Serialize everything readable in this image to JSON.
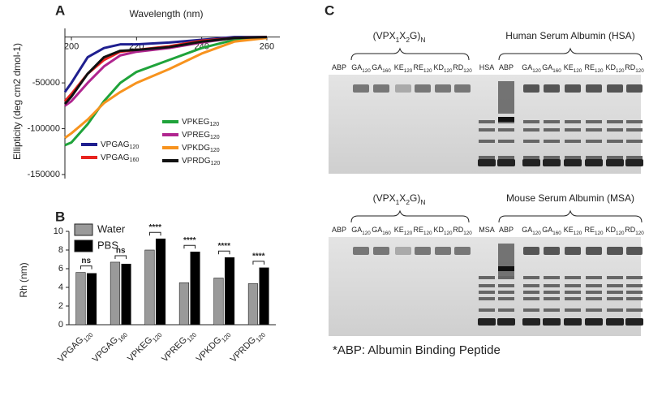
{
  "chart_data": [
    {
      "type": "line",
      "panel": "A",
      "xlabel": "Wavelength (nm)",
      "ylabel": "Ellipticity (deg cm2 dmol-1)",
      "x": [
        198,
        200,
        205,
        210,
        215,
        220,
        230,
        240,
        250,
        260
      ],
      "xlim": [
        198,
        264
      ],
      "xticks": [
        200,
        220,
        240,
        260
      ],
      "ylim": [
        -150000,
        5000
      ],
      "yticks": [
        -150000,
        -100000,
        -50000
      ],
      "series": [
        {
          "name": "VPGAG120",
          "color": "#1f1f8f",
          "values": [
            -60000,
            -50000,
            -22000,
            -12000,
            -8000,
            -8000,
            -6000,
            -3000,
            0,
            0
          ]
        },
        {
          "name": "VPGAG160",
          "color": "#e8231f",
          "values": [
            -70000,
            -62000,
            -40000,
            -25000,
            -16000,
            -14000,
            -10000,
            -4000,
            -1000,
            0
          ]
        },
        {
          "name": "VPKEG120",
          "color": "#1fa33a",
          "values": [
            -118000,
            -115000,
            -95000,
            -70000,
            -50000,
            -38000,
            -25000,
            -12000,
            -3000,
            -1000
          ]
        },
        {
          "name": "VPREG120",
          "color": "#b0258f",
          "values": [
            -75000,
            -70000,
            -50000,
            -32000,
            -20000,
            -16000,
            -12000,
            -6000,
            -1000,
            0
          ]
        },
        {
          "name": "VPKDG120",
          "color": "#f7931e",
          "values": [
            -110000,
            -105000,
            -90000,
            -72000,
            -60000,
            -50000,
            -35000,
            -18000,
            -5000,
            -1000
          ]
        },
        {
          "name": "VPRDG120",
          "color": "#111111",
          "values": [
            -73000,
            -65000,
            -40000,
            -22000,
            -15000,
            -14000,
            -11000,
            -5000,
            -1000,
            0
          ]
        }
      ]
    },
    {
      "type": "bar",
      "panel": "B",
      "ylabel": "Rh (nm)",
      "categories": [
        "VPGAG120",
        "VPGAG160",
        "VPKEG120",
        "VPREG120",
        "VPKDG120",
        "VPRDG120"
      ],
      "ylim": [
        0,
        10
      ],
      "yticks": [
        0,
        2,
        4,
        6,
        8,
        10
      ],
      "series": [
        {
          "name": "Water",
          "color": "#9a9a9a",
          "values": [
            5.6,
            6.7,
            8.0,
            4.5,
            5.0,
            4.4
          ]
        },
        {
          "name": "PBS",
          "color": "#000000",
          "values": [
            5.5,
            6.5,
            9.2,
            7.8,
            7.2,
            6.1
          ]
        }
      ],
      "significance": [
        "ns",
        "ns",
        "****",
        "****",
        "****",
        "****"
      ]
    }
  ],
  "gels": {
    "panel": "C",
    "blots": [
      {
        "bracket_left": "(VPX1X2G)N",
        "bracket_right": "Human Serum Albumin (HSA)",
        "lanes": [
          "ABP",
          "GA120",
          "GA160",
          "KE120",
          "RE120",
          "KD120",
          "RD120",
          "HSA",
          "ABP",
          "GA120",
          "GA160",
          "KE120",
          "RE120",
          "KD120",
          "RD120"
        ]
      },
      {
        "bracket_left": "(VPX1X2G)N",
        "bracket_right": "Mouse Serum Albumin (MSA)",
        "lanes": [
          "ABP",
          "GA120",
          "GA160",
          "KE120",
          "RE120",
          "KD120",
          "RD120",
          "MSA",
          "ABP",
          "GA120",
          "GA160",
          "KE120",
          "RE120",
          "KD120",
          "RD120"
        ]
      }
    ],
    "footnote": "*ABP: Albumin Binding Peptide"
  }
}
